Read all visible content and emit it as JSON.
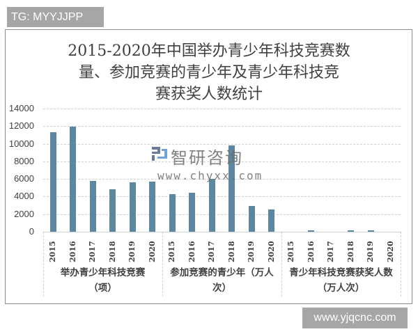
{
  "badges": {
    "top_left": "TG: MYYJJPP",
    "bottom_right": "www.yjqcnc.com"
  },
  "watermark": {
    "brand": "智研咨询",
    "url": "www.chyxx.com"
  },
  "title_lines": [
    "2015-2020年中国举办青少年科技竞赛数",
    "量、参加竞赛的青少年及青少年科技竞",
    "赛获奖人数统计"
  ],
  "y_ticks": [
    "14000",
    "12000",
    "10000",
    "8000",
    "6000",
    "4000",
    "2000",
    "0"
  ],
  "groups": [
    {
      "label_lines": [
        "举办青少年科技竞赛",
        "（项）"
      ]
    },
    {
      "label_lines": [
        "参加竞赛的青少年（万人",
        "次）"
      ]
    },
    {
      "label_lines": [
        "青少年科技竞赛获奖人数",
        "（万人次）"
      ]
    }
  ],
  "colors": {
    "bar": "#5b87a0",
    "badge": "#a6a6a6"
  },
  "chart_data": {
    "type": "bar",
    "title": "2015-2020年中国举办青少年科技竞赛数量、参加竞赛的青少年及青少年科技竞赛获奖人数统计",
    "xlabel": "",
    "ylabel": "",
    "ylim": [
      0,
      14000
    ],
    "yticks": [
      0,
      2000,
      4000,
      6000,
      8000,
      10000,
      12000,
      14000
    ],
    "grid": true,
    "legend": "none",
    "categories": [
      "2015",
      "2016",
      "2017",
      "2018",
      "2019",
      "2020"
    ],
    "series": [
      {
        "name": "举办青少年科技竞赛（项）",
        "values": [
          11300,
          11950,
          5800,
          4850,
          5650,
          5700
        ]
      },
      {
        "name": "参加竞赛的青少年（万人次）",
        "values": [
          4300,
          4400,
          6000,
          9800,
          2950,
          2550
        ]
      },
      {
        "name": "青少年科技竞赛获奖人数（万人次）",
        "values": [
          0,
          150,
          0,
          150,
          150,
          0
        ]
      }
    ]
  }
}
